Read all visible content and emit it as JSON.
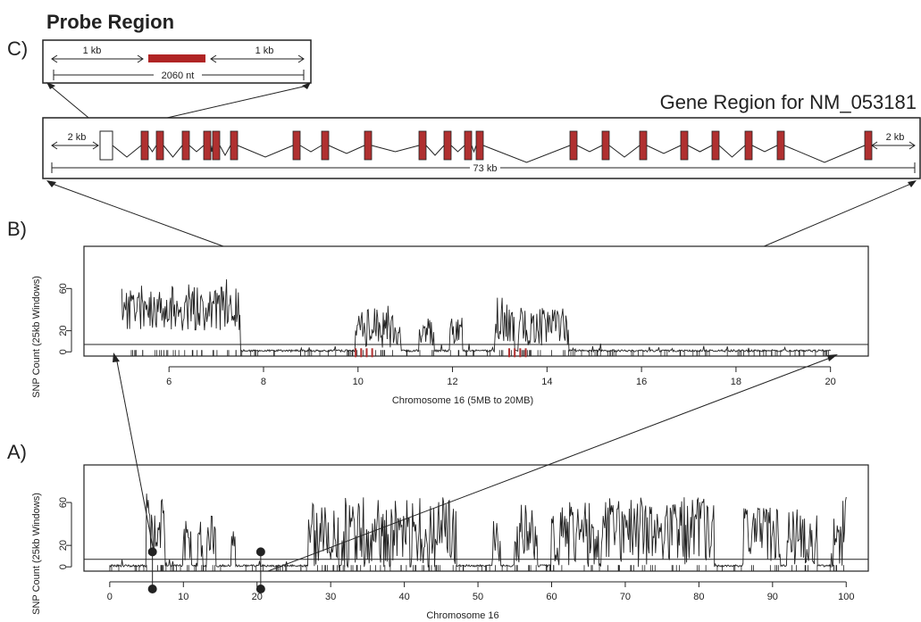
{
  "panel_labels": {
    "a": "A)",
    "b": "B)",
    "c": "C)"
  },
  "probe": {
    "title": "Probe Region",
    "left_label": "1 kb",
    "right_label": "1 kb",
    "total_label": "2060 nt"
  },
  "gene": {
    "title": "Gene Region for NM_053181",
    "left_flank": "2 kb",
    "right_flank": "2 kb",
    "total_label": "73 kb"
  },
  "colors": {
    "exon": "#b03030",
    "probe_bar": "#b02424",
    "line": "#222222"
  },
  "chart_data": [
    {
      "id": "b",
      "type": "line",
      "title": "",
      "xlabel": "Chromosome 16 (5MB to 20MB)",
      "ylabel": "SNP Count (25kb Windows)",
      "xlim": [
        4.2,
        20.8
      ],
      "ylim": [
        -4,
        100
      ],
      "xticks": [
        6,
        8,
        10,
        12,
        14,
        16,
        18,
        20
      ],
      "yticks": [
        0,
        20,
        60
      ],
      "threshold": 7,
      "dense_segments": [
        {
          "x": [
            5.0,
            7.5
          ],
          "mean": 42,
          "amp": 22
        },
        {
          "x": [
            9.95,
            10.9
          ],
          "mean": 24,
          "amp": 20
        },
        {
          "x": [
            11.3,
            11.6
          ],
          "mean": 20,
          "amp": 15
        },
        {
          "x": [
            11.95,
            12.2
          ],
          "mean": 20,
          "amp": 15
        },
        {
          "x": [
            12.9,
            13.3
          ],
          "mean": 30,
          "amp": 22
        },
        {
          "x": [
            13.4,
            14.45
          ],
          "mean": 24,
          "amp": 18
        }
      ],
      "highlight_ranges": [
        [
          9.95,
          10.3
        ],
        [
          13.2,
          13.55
        ]
      ]
    },
    {
      "id": "a",
      "type": "line",
      "title": "",
      "xlabel": "Chromosome 16",
      "ylabel": "SNP Count (25kb Windows)",
      "xlim": [
        -3.5,
        103
      ],
      "ylim": [
        -4,
        95
      ],
      "xticks": [
        0,
        10,
        20,
        30,
        40,
        50,
        60,
        70,
        80,
        90,
        100
      ],
      "yticks": [
        0,
        20,
        60
      ],
      "threshold": 7,
      "dense_segments": [
        {
          "x": [
            5.0,
            7.5
          ],
          "mean": 38,
          "amp": 35
        },
        {
          "x": [
            10,
            11
          ],
          "mean": 28,
          "amp": 22
        },
        {
          "x": [
            11.9,
            12.6
          ],
          "mean": 25,
          "amp": 18
        },
        {
          "x": [
            13.2,
            14.4
          ],
          "mean": 30,
          "amp": 20
        },
        {
          "x": [
            16.5,
            17
          ],
          "mean": 20,
          "amp": 12
        },
        {
          "x": [
            27,
            31
          ],
          "mean": 30,
          "amp": 30
        },
        {
          "x": [
            31.5,
            47
          ],
          "mean": 30,
          "amp": 35
        },
        {
          "x": [
            52,
            53
          ],
          "mean": 25,
          "amp": 20
        },
        {
          "x": [
            55,
            58
          ],
          "mean": 30,
          "amp": 28
        },
        {
          "x": [
            60,
            82
          ],
          "mean": 32,
          "amp": 33
        },
        {
          "x": [
            86,
            91
          ],
          "mean": 28,
          "amp": 28
        },
        {
          "x": [
            92,
            96
          ],
          "mean": 28,
          "amp": 26
        },
        {
          "x": [
            98,
            100
          ],
          "mean": 35,
          "amp": 35
        }
      ],
      "markers": [
        5.8,
        20.5
      ]
    }
  ]
}
